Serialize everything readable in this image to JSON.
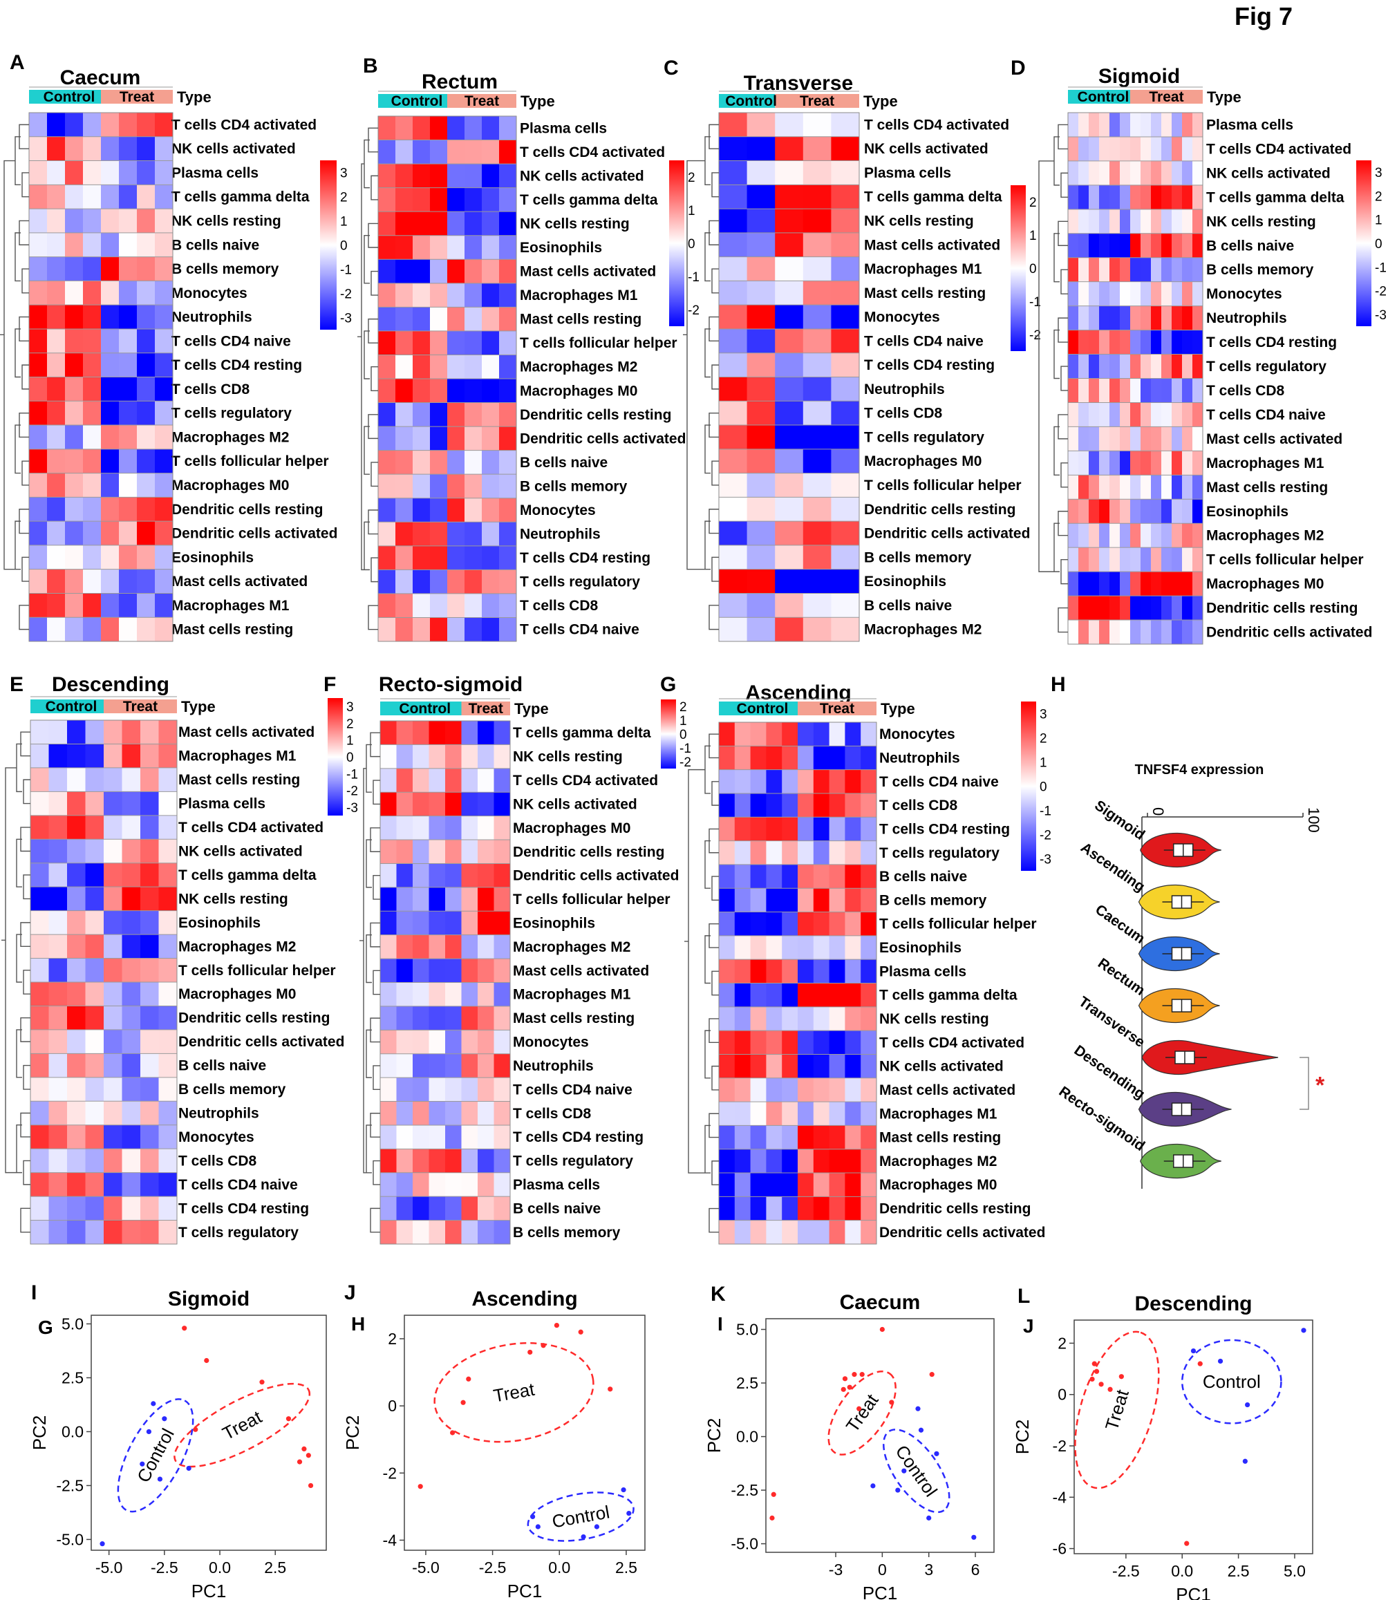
{
  "figure_label": "Fig 7",
  "colors": {
    "control_bar": "#1fcfcf",
    "treat_bar": "#f4a090",
    "high": "#ff0000",
    "mid": "#ffffff",
    "low": "#0000ff"
  },
  "chart_data": [
    {
      "type": "heatmap",
      "panel": "A",
      "title": "Caecum",
      "legend_title": "Type",
      "group_labels": [
        "Control",
        "Treat"
      ],
      "control_cols": 4,
      "treat_cols": 4,
      "scale": [
        -3,
        -2,
        -1,
        0,
        1,
        2,
        3
      ],
      "rows": [
        "T cells CD4 activated",
        "NK cells activated",
        "Plasma cells",
        "T cells gamma delta",
        "NK cells resting",
        "B cells naive",
        "B cells memory",
        "Monocytes",
        "Neutrophils",
        "T cells CD4 naive",
        "T cells CD4 resting",
        "T cells CD8",
        "T cells regulatory",
        "Macrophages M2",
        "T cells follicular helper",
        "Macrophages M0",
        "Dendritic cells resting",
        "Dendritic cells activated",
        "Eosinophils",
        "Mast cells activated",
        "Macrophages M1",
        "Mast cells resting"
      ]
    },
    {
      "type": "heatmap",
      "panel": "B",
      "title": "Rectum",
      "legend_title": "Type",
      "group_labels": [
        "Control",
        "Treat"
      ],
      "control_cols": 4,
      "treat_cols": 4,
      "scale": [
        -2,
        -1,
        0,
        1,
        2
      ],
      "rows": [
        "Plasma cells",
        "T cells CD4 activated",
        "NK cells activated",
        "T cells gamma delta",
        "NK cells resting",
        "Eosinophils",
        "Mast cells activated",
        "Macrophages M1",
        "Mast cells resting",
        "T cells follicular helper",
        "Macrophages M2",
        "Macrophages M0",
        "Dendritic cells resting",
        "Dendritic cells activated",
        "B cells naive",
        "B cells memory",
        "Monocytes",
        "Neutrophils",
        "T cells CD4 resting",
        "T cells regulatory",
        "T cells CD8",
        "T cells CD4 naive"
      ]
    },
    {
      "type": "heatmap",
      "panel": "C",
      "title": "Transverse",
      "legend_title": "Type",
      "group_labels": [
        "Control",
        "Treat"
      ],
      "control_cols": 2,
      "treat_cols": 3,
      "scale": [
        -2,
        -1,
        0,
        1,
        2
      ],
      "rows": [
        "T cells CD4 activated",
        "NK cells activated",
        "Plasma cells",
        "T cells gamma delta",
        "NK cells resting",
        "Mast cells activated",
        "Macrophages M1",
        "Mast cells resting",
        "Monocytes",
        "T cells CD4 naive",
        "T cells CD4 resting",
        "Neutrophils",
        "T cells CD8",
        "T cells regulatory",
        "Macrophages M0",
        "T cells follicular helper",
        "Dendritic cells resting",
        "Dendritic cells activated",
        "B cells memory",
        "Eosinophils",
        "B cells naive",
        "Macrophages M2"
      ]
    },
    {
      "type": "heatmap",
      "panel": "D",
      "title": "Sigmoid",
      "legend_title": "Type",
      "group_labels": [
        "Control",
        "Treat"
      ],
      "control_cols": 6,
      "treat_cols": 7,
      "scale": [
        -3,
        -2,
        -1,
        0,
        1,
        2,
        3
      ],
      "rows": [
        "Plasma cells",
        "T cells CD4 activated",
        "NK cells activated",
        "T cells gamma delta",
        "NK cells resting",
        "B cells naive",
        "B cells memory",
        "Monocytes",
        "Neutrophils",
        "T cells CD4 resting",
        "T cells regulatory",
        "T cells CD8",
        "T cells CD4 naive",
        "Mast cells activated",
        "Macrophages M1",
        "Mast cells resting",
        "Eosinophils",
        "Macrophages M2",
        "T cells follicular helper",
        "Macrophages M0",
        "Dendritic cells resting",
        "Dendritic cells activated"
      ]
    },
    {
      "type": "heatmap",
      "panel": "E",
      "title": "Descending",
      "legend_title": "Type",
      "group_labels": [
        "Control",
        "Treat"
      ],
      "control_cols": 4,
      "treat_cols": 4,
      "scale": [
        -3,
        -2,
        -1,
        0,
        1,
        2,
        3
      ],
      "rows": [
        "Mast cells activated",
        "Macrophages M1",
        "Mast cells resting",
        "Plasma cells",
        "T cells CD4 activated",
        "NK cells activated",
        "T cells gamma delta",
        "NK cells resting",
        "Eosinophils",
        "Macrophages M2",
        "T cells follicular helper",
        "Macrophages M0",
        "Dendritic cells resting",
        "Dendritic cells activated",
        "B cells naive",
        "B cells memory",
        "Neutrophils",
        "Monocytes",
        "T cells CD8",
        "T cells CD4 naive",
        "T cells CD4 resting",
        "T cells regulatory"
      ]
    },
    {
      "type": "heatmap",
      "panel": "F",
      "title": "Recto-sigmoid",
      "legend_title": "Type",
      "group_labels": [
        "Control",
        "Treat"
      ],
      "control_cols": 5,
      "treat_cols": 3,
      "scale": [
        -2,
        -1,
        0,
        1,
        2
      ],
      "rows": [
        "T cells gamma delta",
        "NK cells resting",
        "T cells CD4 activated",
        "NK cells activated",
        "Macrophages M0",
        "Dendritic cells resting",
        "Dendritic cells activated",
        "T cells follicular helper",
        "Eosinophils",
        "Macrophages M2",
        "Mast cells activated",
        "Macrophages M1",
        "Mast cells resting",
        "Monocytes",
        "Neutrophils",
        "T cells CD4 naive",
        "T cells CD8",
        "T cells CD4 resting",
        "T cells regulatory",
        "Plasma cells",
        "B cells naive",
        "B cells memory"
      ]
    },
    {
      "type": "heatmap",
      "panel": "G",
      "title": "Ascending",
      "legend_title": "Type",
      "group_labels": [
        "Control",
        "Treat"
      ],
      "control_cols": 5,
      "treat_cols": 5,
      "scale": [
        -3,
        -2,
        -1,
        0,
        1,
        2,
        3
      ],
      "rows": [
        "Monocytes",
        "Neutrophils",
        "T cells CD4 naive",
        "T cells CD8",
        "T cells CD4 resting",
        "T cells regulatory",
        "B cells naive",
        "B cells memory",
        "T cells follicular helper",
        "Eosinophils",
        "Plasma cells",
        "T cells gamma delta",
        "NK cells resting",
        "T cells CD4 activated",
        "NK cells activated",
        "Mast cells activated",
        "Macrophages M1",
        "Mast cells resting",
        "Macrophages M2",
        "Macrophages M0",
        "Dendritic cells resting",
        "Dendritic cells activated"
      ]
    },
    {
      "type": "violin",
      "panel": "H",
      "title": "TNFSF4 expression",
      "axis_ticks": [
        "0",
        "100"
      ],
      "axis_range": [
        0,
        100
      ],
      "significance": "*",
      "groups": [
        {
          "name": "Sigmoid",
          "median": 23,
          "color": "#e0191c"
        },
        {
          "name": "Ascending",
          "median": 22,
          "color": "#f6d22a"
        },
        {
          "name": "Caecum",
          "median": 22,
          "color": "#2e6fe0"
        },
        {
          "name": "Rectum",
          "median": 22,
          "color": "#f4a020"
        },
        {
          "name": "Transverse",
          "median": 24,
          "color": "#e0191c"
        },
        {
          "name": "Descending",
          "median": 22,
          "color": "#5b3f86"
        },
        {
          "name": "Recto-sigmoid",
          "median": 23,
          "color": "#6ab04c"
        }
      ]
    },
    {
      "type": "scatter",
      "panel": "I",
      "title": "Sigmoid",
      "xlabel": "PC1",
      "ylabel": "PC2",
      "xlim": [
        -5.8,
        4.8
      ],
      "ylim": [
        -5.5,
        5.4
      ],
      "xticks": [
        "-5.0",
        "-2.5",
        "0.0",
        "2.5"
      ],
      "xtick_vals": [
        -5,
        -2.5,
        0,
        2.5
      ],
      "yticks": [
        "5.0",
        "2.5",
        "0.0",
        "-2.5",
        "-5.0"
      ],
      "ytick_vals": [
        5,
        2.5,
        0,
        -2.5,
        -5
      ],
      "groups": [
        {
          "name": "Treat",
          "color": "#ff2a2a",
          "points": [
            [
              -1.6,
              4.8
            ],
            [
              -0.6,
              3.3
            ],
            [
              1.9,
              2.3
            ],
            [
              3.1,
              0.6
            ],
            [
              3.8,
              -0.8
            ],
            [
              4.0,
              -1.1
            ],
            [
              3.6,
              -1.4
            ],
            [
              4.1,
              -2.5
            ],
            [
              -1.1,
              0.1
            ]
          ],
          "ellipse": {
            "cx": 1.0,
            "cy": 0.3,
            "rx": 3.4,
            "ry": 1.1,
            "angle": -28
          }
        },
        {
          "name": "Control",
          "color": "#2a2aff",
          "points": [
            [
              -3.0,
              1.3
            ],
            [
              -2.5,
              0.6
            ],
            [
              -3.2,
              0.0
            ],
            [
              -3.5,
              -1.5
            ],
            [
              -2.7,
              -2.2
            ],
            [
              -1.4,
              -1.7
            ],
            [
              -5.3,
              -5.2
            ]
          ],
          "ellipse": {
            "cx": -2.9,
            "cy": -1.1,
            "rx": 2.8,
            "ry": 1.2,
            "angle": -62
          }
        }
      ]
    },
    {
      "type": "scatter",
      "panel": "J",
      "title": "Ascending",
      "xlabel": "PC1",
      "ylabel": "PC2",
      "xlim": [
        -5.8,
        3.2
      ],
      "ylim": [
        -4.3,
        2.7
      ],
      "xticks": [
        "-5.0",
        "-2.5",
        "0.0",
        "2.5"
      ],
      "xtick_vals": [
        -5,
        -2.5,
        0,
        2.5
      ],
      "yticks": [
        "2",
        "0",
        "-2",
        "-4"
      ],
      "ytick_vals": [
        2,
        0,
        -2,
        -4
      ],
      "groups": [
        {
          "name": "Treat",
          "color": "#ff2a2a",
          "points": [
            [
              -0.1,
              2.4
            ],
            [
              0.8,
              2.2
            ],
            [
              -0.6,
              1.8
            ],
            [
              -1.1,
              1.6
            ],
            [
              -3.4,
              0.8
            ],
            [
              -3.6,
              0.1
            ],
            [
              -4.0,
              -0.8
            ],
            [
              1.9,
              0.5
            ],
            [
              -5.2,
              -2.4
            ]
          ],
          "ellipse": {
            "cx": -1.7,
            "cy": 0.4,
            "rx": 3.0,
            "ry": 1.8,
            "angle": -10
          }
        },
        {
          "name": "Control",
          "color": "#2a2aff",
          "points": [
            [
              -1.0,
              -3.3
            ],
            [
              -0.8,
              -3.6
            ],
            [
              2.4,
              -2.5
            ],
            [
              2.6,
              -3.2
            ],
            [
              0.9,
              -3.9
            ],
            [
              1.4,
              -3.6
            ]
          ],
          "ellipse": {
            "cx": 0.8,
            "cy": -3.3,
            "rx": 2.0,
            "ry": 0.85,
            "angle": -10
          }
        }
      ]
    },
    {
      "type": "scatter",
      "panel": "K",
      "title": "Caecum",
      "xlabel": "PC1",
      "ylabel": "PC2",
      "xlim": [
        -7.5,
        7.2
      ],
      "ylim": [
        -5.4,
        5.5
      ],
      "xticks": [
        "-3",
        "0",
        "3",
        "6"
      ],
      "xtick_vals": [
        -3,
        0,
        3,
        6
      ],
      "yticks": [
        "5.0",
        "2.5",
        "0.0",
        "-2.5",
        "-5.0"
      ],
      "ytick_vals": [
        5,
        2.5,
        0,
        -2.5,
        -5
      ],
      "groups": [
        {
          "name": "Treat",
          "color": "#ff2a2a",
          "points": [
            [
              -2.4,
              2.7
            ],
            [
              -1.8,
              2.9
            ],
            [
              -1.3,
              2.9
            ],
            [
              -2.5,
              2.2
            ],
            [
              -2.1,
              2.3
            ],
            [
              -1.5,
              1.3
            ],
            [
              0.6,
              1.6
            ],
            [
              0.0,
              5.0
            ],
            [
              -7.0,
              -2.7
            ],
            [
              -7.1,
              -3.8
            ],
            [
              3.2,
              2.9
            ]
          ],
          "ellipse": {
            "cx": -1.3,
            "cy": 1.1,
            "rx": 3.1,
            "ry": 1.5,
            "angle": -55
          }
        },
        {
          "name": "Control",
          "color": "#2a2aff",
          "points": [
            [
              2.3,
              1.3
            ],
            [
              1.4,
              -1.6
            ],
            [
              3.5,
              -0.8
            ],
            [
              1.0,
              -2.5
            ],
            [
              -0.6,
              -2.3
            ],
            [
              3.0,
              -3.8
            ],
            [
              5.9,
              -4.7
            ],
            [
              2.5,
              0.3
            ]
          ],
          "ellipse": {
            "cx": 2.2,
            "cy": -1.6,
            "rx": 3.1,
            "ry": 1.4,
            "angle": 55
          }
        }
      ]
    },
    {
      "type": "scatter",
      "panel": "L",
      "title": "Descending",
      "xlabel": "PC1",
      "ylabel": "PC2",
      "xlim": [
        -4.8,
        5.8
      ],
      "ylim": [
        -6.2,
        2.9
      ],
      "xticks": [
        "-2.5",
        "0.0",
        "2.5",
        "5.0"
      ],
      "xtick_vals": [
        -2.5,
        0,
        2.5,
        5
      ],
      "yticks": [
        "2",
        "0",
        "-2",
        "-4",
        "-6"
      ],
      "ytick_vals": [
        2,
        0,
        -2,
        -4,
        -6
      ],
      "groups": [
        {
          "name": "Treat",
          "color": "#ff2a2a",
          "points": [
            [
              -3.9,
              1.2
            ],
            [
              -4.0,
              0.6
            ],
            [
              -3.6,
              0.4
            ],
            [
              -3.8,
              0.9
            ],
            [
              -3.2,
              0.2
            ],
            [
              -2.7,
              0.7
            ],
            [
              0.8,
              1.2
            ],
            [
              0.2,
              -5.8
            ]
          ],
          "ellipse": {
            "cx": -2.9,
            "cy": -0.6,
            "rx": 3.6,
            "ry": 1.6,
            "angle": -73
          }
        },
        {
          "name": "Control",
          "color": "#2a2aff",
          "points": [
            [
              0.5,
              1.7
            ],
            [
              1.7,
              1.3
            ],
            [
              2.9,
              -0.4
            ],
            [
              2.8,
              -2.6
            ],
            [
              5.4,
              2.5
            ]
          ],
          "ellipse": {
            "cx": 2.2,
            "cy": 0.5,
            "rx": 2.2,
            "ry": 1.85,
            "angle": 0
          }
        }
      ]
    }
  ]
}
